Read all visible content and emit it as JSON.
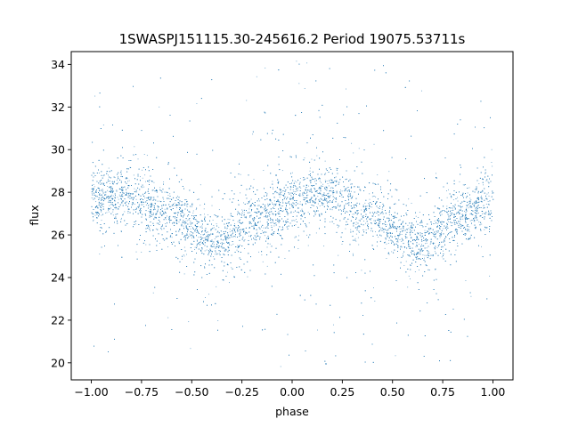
{
  "chart_data": {
    "type": "scatter",
    "title": "1SWASPJ151115.30-245616.2 Period 19075.53711s",
    "xlabel": "phase",
    "ylabel": "flux",
    "xlim": [
      -1.1,
      1.1
    ],
    "ylim": [
      19.2,
      34.6
    ],
    "xticks": [
      -1.0,
      -0.75,
      -0.5,
      -0.25,
      0.0,
      0.25,
      0.5,
      0.75,
      1.0
    ],
    "xtick_labels": [
      "−1.00",
      "−0.75",
      "−0.50",
      "−0.25",
      "0.00",
      "0.25",
      "0.50",
      "0.75",
      "1.00"
    ],
    "yticks": [
      20,
      22,
      24,
      26,
      28,
      30,
      32,
      34
    ],
    "ytick_labels": [
      "20",
      "22",
      "24",
      "26",
      "28",
      "30",
      "32",
      "34"
    ],
    "grid": false,
    "point_color": "#1f77b4",
    "trend": {
      "description": "dense folded light curve, sinusoid-like",
      "x": [
        -1.0,
        -0.85,
        -0.62,
        -0.38,
        -0.15,
        0.0,
        0.15,
        0.38,
        0.62,
        0.85,
        1.0
      ],
      "y": [
        27.6,
        28.0,
        27.0,
        25.6,
        26.9,
        27.6,
        28.0,
        27.0,
        25.6,
        26.9,
        27.6
      ]
    },
    "x_range": [
      -1.0,
      1.0
    ],
    "y_range": [
      19.8,
      34.2
    ]
  }
}
